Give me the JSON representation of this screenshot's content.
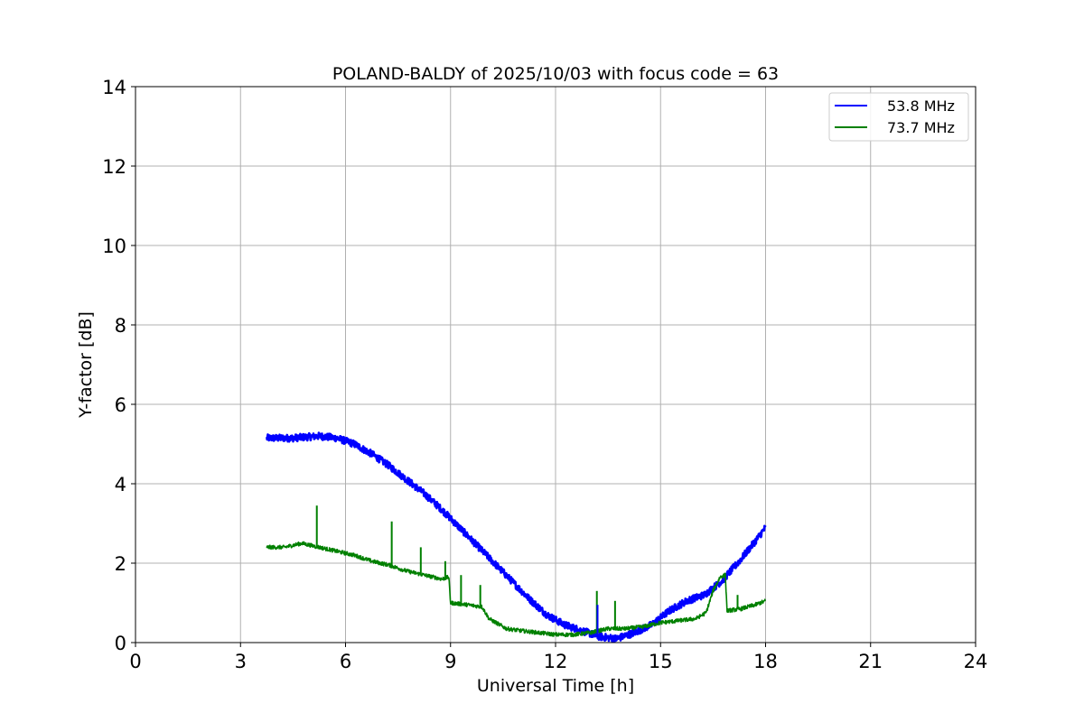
{
  "chart_data": {
    "type": "line",
    "title": "POLAND-BALDY of 2025/10/03 with focus code = 63",
    "xlabel": "Universal Time [h]",
    "ylabel": "Y-factor [dB]",
    "xlim": [
      0,
      24
    ],
    "ylim": [
      0,
      14
    ],
    "xticks": [
      0,
      3,
      6,
      9,
      12,
      15,
      18,
      21,
      24
    ],
    "xtick_labels": [
      "0",
      "3",
      "6",
      "9",
      "12",
      "15",
      "18",
      "21",
      "24"
    ],
    "yticks": [
      0,
      2,
      4,
      6,
      8,
      10,
      12,
      14
    ],
    "ytick_labels": [
      "0",
      "2",
      "4",
      "6",
      "8",
      "10",
      "12",
      "14"
    ],
    "grid": true,
    "legend_position": "top-right",
    "series": [
      {
        "name": "53.8 MHz",
        "color": "#0000ff",
        "noise": 0.09,
        "x": [
          3.75,
          4.5,
          5.25,
          5.75,
          6.25,
          6.75,
          7.25,
          7.75,
          8.25,
          8.75,
          9.25,
          9.75,
          10.25,
          10.75,
          11.25,
          11.75,
          12.25,
          12.75,
          13.25,
          13.75,
          14.25,
          14.75,
          15.25,
          15.75,
          16.25,
          16.75,
          17.25,
          17.75,
          18.0
        ],
        "y": [
          5.15,
          5.15,
          5.2,
          5.15,
          5.0,
          4.75,
          4.45,
          4.1,
          3.75,
          3.35,
          2.9,
          2.45,
          2.0,
          1.55,
          1.1,
          0.7,
          0.45,
          0.3,
          0.15,
          0.1,
          0.25,
          0.45,
          0.8,
          1.05,
          1.2,
          1.55,
          2.05,
          2.6,
          2.9
        ]
      },
      {
        "name": "73.7 MHz",
        "color": "#008000",
        "noise": 0.05,
        "x": [
          3.75,
          4.25,
          4.75,
          5.25,
          5.75,
          6.25,
          6.75,
          7.25,
          7.75,
          8.25,
          8.75,
          8.95,
          9.0,
          9.5,
          9.9,
          10.1,
          10.6,
          11.0,
          11.5,
          12.0,
          12.5,
          13.0,
          13.5,
          14.0,
          14.5,
          15.0,
          15.5,
          16.0,
          16.3,
          16.5,
          16.7,
          16.85,
          16.9,
          17.3,
          17.7,
          18.0
        ],
        "y": [
          2.4,
          2.4,
          2.5,
          2.4,
          2.3,
          2.2,
          2.05,
          1.95,
          1.8,
          1.7,
          1.6,
          1.65,
          1.0,
          0.95,
          0.9,
          0.6,
          0.35,
          0.3,
          0.25,
          0.2,
          0.2,
          0.25,
          0.35,
          0.35,
          0.4,
          0.5,
          0.55,
          0.6,
          0.75,
          1.3,
          1.65,
          1.7,
          0.8,
          0.85,
          0.95,
          1.05
        ]
      }
    ],
    "spikes": [
      {
        "series": 1,
        "x": [
          5.18,
          7.32,
          8.15,
          8.85,
          9.3,
          9.85,
          13.18,
          13.7,
          17.2
        ],
        "y": [
          3.45,
          3.05,
          2.4,
          2.05,
          1.7,
          1.45,
          1.3,
          1.05,
          1.2
        ]
      },
      {
        "series": 0,
        "x": [
          13.2
        ],
        "y": [
          0.95
        ]
      }
    ]
  }
}
